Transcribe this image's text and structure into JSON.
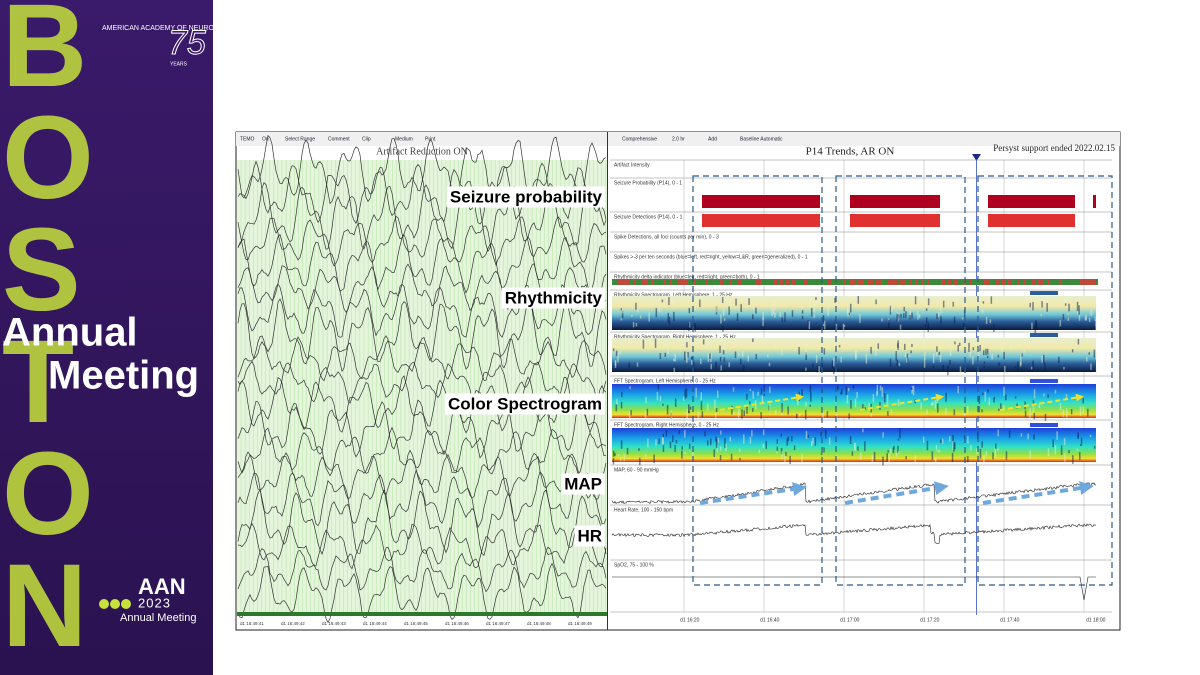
{
  "banner": {
    "boston": [
      "B",
      "O",
      "S",
      "T",
      "O",
      "N"
    ],
    "organization": "AMERICAN ACADEMY OF NEUROLOGY",
    "anniversary": "75",
    "anniversary_caption": "YEARS",
    "annual": "Annual",
    "meeting": "Meeting",
    "logo": "AAN",
    "year": "2023",
    "logo_caption": "Annual Meeting"
  },
  "eeg": {
    "toolbar": [
      "TEMO",
      "On",
      "Select Range",
      "Comment",
      "Clip",
      "Medium",
      "Print"
    ],
    "title": "Artifact Reduction ON",
    "times": [
      "d1 16:49:41",
      "d1 16:49:42",
      "d1 16:49:43",
      "d1 16:49:44",
      "d1 16:49:45",
      "d1 16:49:46",
      "d1 16:49:47",
      "d1 16:49:48",
      "d1 16:49:49"
    ]
  },
  "trends": {
    "toolbar": [
      "Comprehensive",
      "2.0 hr",
      "Add",
      "Baseline Automatic"
    ],
    "title": "P14 Trends, AR ON",
    "notice": "Persyst support ended 2022.02.15",
    "rows": [
      "Artifact Intensity",
      "Seizure Probability (P14), 0 - 1",
      "Seizure Detections (P14), 0 - 1",
      "Spike Detections, all foci (counts per min), 0 - 3",
      "Spikes >-3 per ten seconds (blue=left, red=right, yellow=L&R, green=generalized), 0 - 1",
      "Rhythmicity delta indicator (blue=left, red=right, green=both), 0 - 1",
      "Rhythmicity Spectrogram, Left Hemisphere, 1 - 25 Hz",
      "Rhythmicity Spectrogram, Right Hemisphere, 1 - 25 Hz",
      "FFT Spectrogram, Left Hemisphere, 0 - 25 Hz",
      "FFT Spectrogram, Right Hemisphere, 0 - 25 Hz",
      "MAP, 60 - 90 mmHg",
      "Heart Rate, 100 - 150 bpm",
      "SpO2, 75 - 100 %"
    ],
    "times": [
      "d1 16:20",
      "d1 16:40",
      "d1 17:00",
      "d1 17:20",
      "d1 17:40",
      "d1 18:00"
    ]
  },
  "annotations": [
    "Seizure probability",
    "Rhythmicity",
    "Color Spectrogram",
    "MAP",
    "HR"
  ]
}
